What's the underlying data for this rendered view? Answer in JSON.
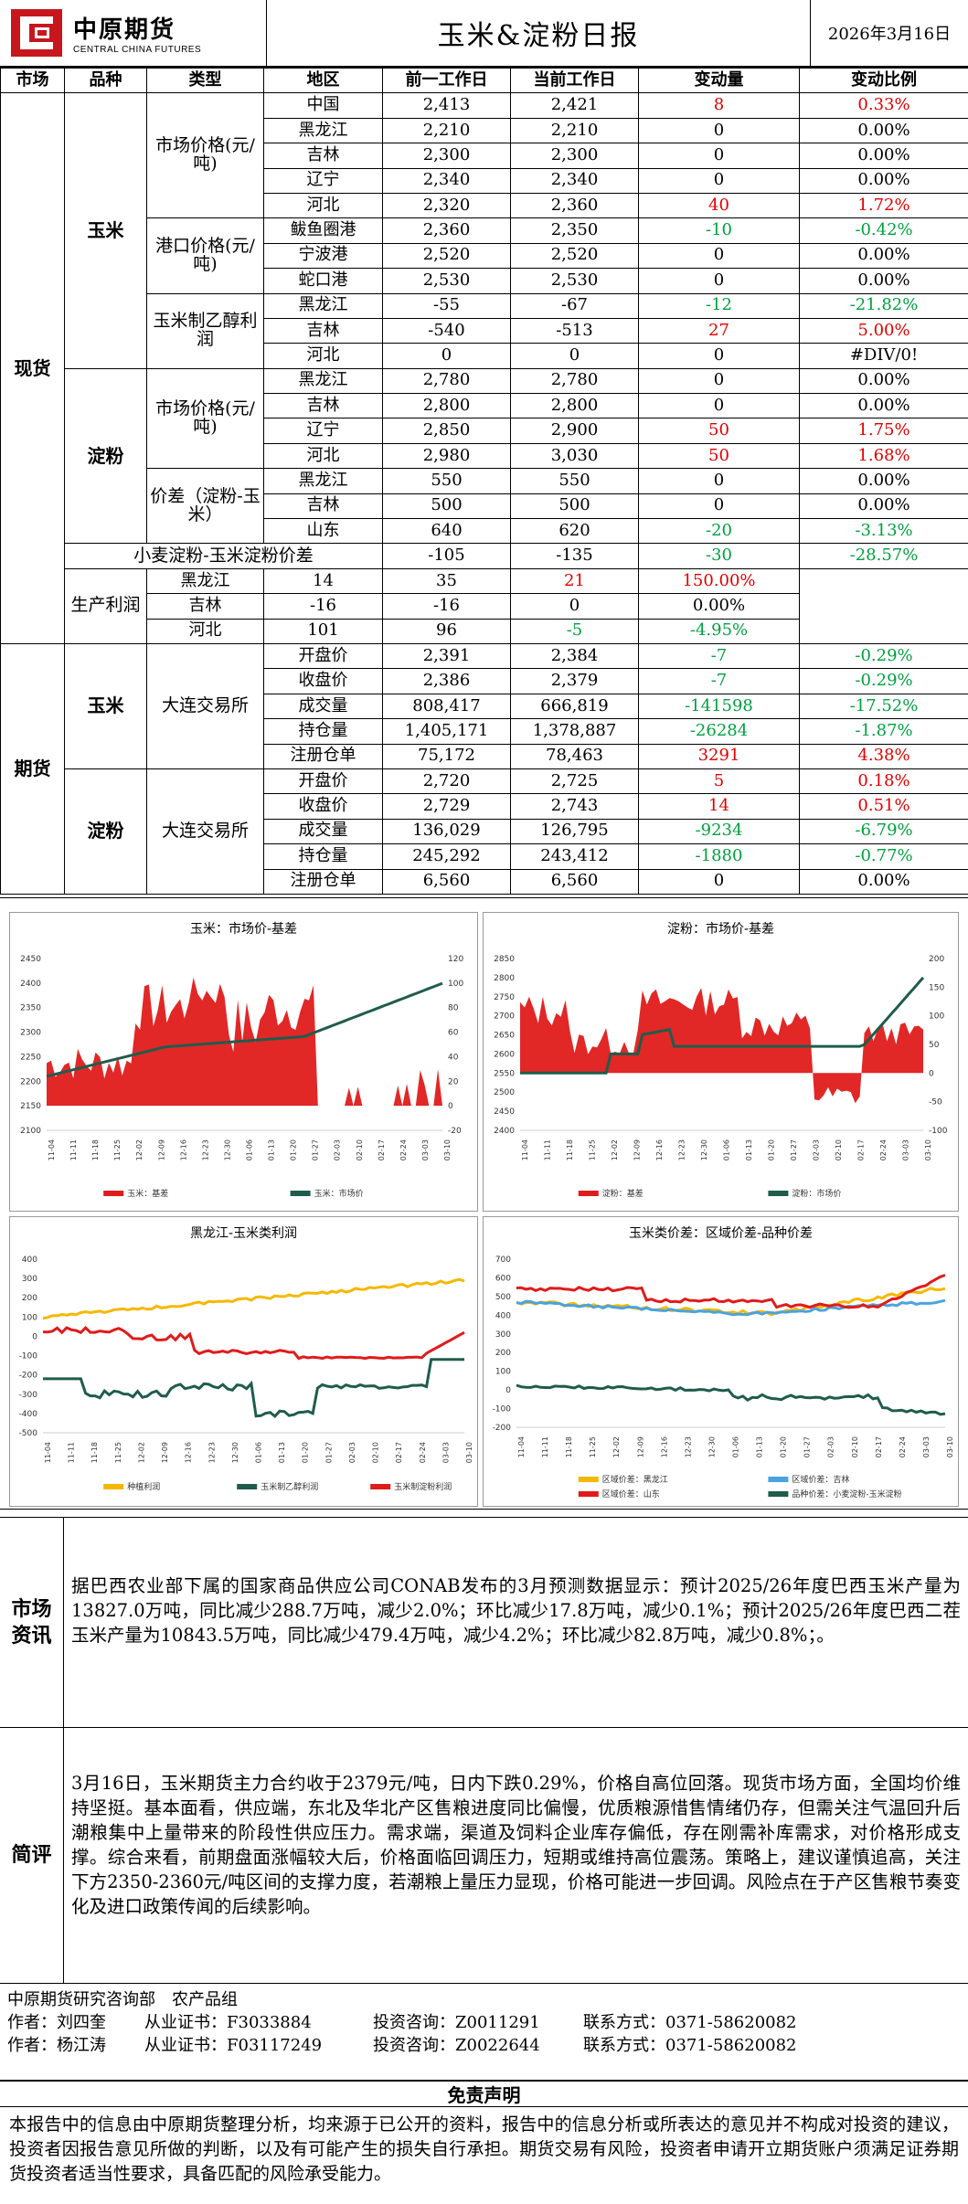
{
  "header": {
    "logo_cn": "中原期货",
    "logo_en": "CENTRAL CHINA FUTURES",
    "title": "玉米&淀粉日报",
    "date": "2026年3月16日"
  },
  "table": {
    "headers": [
      "市场",
      "品种",
      "类型",
      "地区",
      "前一工作日",
      "当前工作日",
      "变动量",
      "变动比例"
    ],
    "market_spot": "现货",
    "market_futures": "期货",
    "corn": "玉米",
    "starch": "淀粉",
    "corn_market_price": "市场价格(元/吨)",
    "corn_port_price": "港口价格(元/吨)",
    "ethanol_profit": "玉米制乙醇利润",
    "starch_market_price": "市场价格(元/吨)",
    "starch_spread": "价差（淀粉-玉米）",
    "wheat_spread": "小麦淀粉-玉米淀粉价差",
    "production_profit": "生产利润",
    "exchange": "大连交易所",
    "rows": [
      {
        "region": "中国",
        "prev": "2,413",
        "curr": "2,421",
        "chg": "8",
        "pct": "0.33%",
        "chg_c": "red",
        "pct_c": "red"
      },
      {
        "region": "黑龙江",
        "prev": "2,210",
        "curr": "2,210",
        "chg": "0",
        "pct": "0.00%",
        "chg_c": "",
        "pct_c": ""
      },
      {
        "region": "吉林",
        "prev": "2,300",
        "curr": "2,300",
        "chg": "0",
        "pct": "0.00%",
        "chg_c": "",
        "pct_c": ""
      },
      {
        "region": "辽宁",
        "prev": "2,340",
        "curr": "2,340",
        "chg": "0",
        "pct": "0.00%",
        "chg_c": "",
        "pct_c": ""
      },
      {
        "region": "河北",
        "prev": "2,320",
        "curr": "2,360",
        "chg": "40",
        "pct": "1.72%",
        "chg_c": "red",
        "pct_c": "red"
      },
      {
        "region": "鲅鱼圈港",
        "prev": "2,360",
        "curr": "2,350",
        "chg": "-10",
        "pct": "-0.42%",
        "chg_c": "green",
        "pct_c": "green"
      },
      {
        "region": "宁波港",
        "prev": "2,520",
        "curr": "2,520",
        "chg": "0",
        "pct": "0.00%",
        "chg_c": "",
        "pct_c": ""
      },
      {
        "region": "蛇口港",
        "prev": "2,530",
        "curr": "2,530",
        "chg": "0",
        "pct": "0.00%",
        "chg_c": "",
        "pct_c": ""
      },
      {
        "region": "黑龙江",
        "prev": "-55",
        "curr": "-67",
        "chg": "-12",
        "pct": "-21.82%",
        "chg_c": "green",
        "pct_c": "green"
      },
      {
        "region": "吉林",
        "prev": "-540",
        "curr": "-513",
        "chg": "27",
        "pct": "5.00%",
        "chg_c": "red",
        "pct_c": "red"
      },
      {
        "region": "河北",
        "prev": "0",
        "curr": "0",
        "chg": "0",
        "pct": "#DIV/0!",
        "chg_c": "",
        "pct_c": ""
      },
      {
        "region": "黑龙江",
        "prev": "2,780",
        "curr": "2,780",
        "chg": "0",
        "pct": "0.00%",
        "chg_c": "",
        "pct_c": ""
      },
      {
        "region": "吉林",
        "prev": "2,800",
        "curr": "2,800",
        "chg": "0",
        "pct": "0.00%",
        "chg_c": "",
        "pct_c": ""
      },
      {
        "region": "辽宁",
        "prev": "2,850",
        "curr": "2,900",
        "chg": "50",
        "pct": "1.75%",
        "chg_c": "red",
        "pct_c": "red"
      },
      {
        "region": "河北",
        "prev": "2,980",
        "curr": "3,030",
        "chg": "50",
        "pct": "1.68%",
        "chg_c": "red",
        "pct_c": "red"
      },
      {
        "region": "黑龙江",
        "prev": "550",
        "curr": "550",
        "chg": "0",
        "pct": "0.00%",
        "chg_c": "",
        "pct_c": ""
      },
      {
        "region": "吉林",
        "prev": "500",
        "curr": "500",
        "chg": "0",
        "pct": "0.00%",
        "chg_c": "",
        "pct_c": ""
      },
      {
        "region": "山东",
        "prev": "640",
        "curr": "620",
        "chg": "-20",
        "pct": "-3.13%",
        "chg_c": "green",
        "pct_c": "green"
      },
      {
        "region": "",
        "prev": "-105",
        "curr": "-135",
        "chg": "-30",
        "pct": "-28.57%",
        "chg_c": "green",
        "pct_c": "green"
      },
      {
        "region": "黑龙江",
        "prev": "14",
        "curr": "35",
        "chg": "21",
        "pct": "150.00%",
        "chg_c": "red",
        "pct_c": "red"
      },
      {
        "region": "吉林",
        "prev": "-16",
        "curr": "-16",
        "chg": "0",
        "pct": "0.00%",
        "chg_c": "",
        "pct_c": ""
      },
      {
        "region": "河北",
        "prev": "101",
        "curr": "96",
        "chg": "-5",
        "pct": "-4.95%",
        "chg_c": "green",
        "pct_c": "green"
      },
      {
        "region": "开盘价",
        "prev": "2,391",
        "curr": "2,384",
        "chg": "-7",
        "pct": "-0.29%",
        "chg_c": "green",
        "pct_c": "green"
      },
      {
        "region": "收盘价",
        "prev": "2,386",
        "curr": "2,379",
        "chg": "-7",
        "pct": "-0.29%",
        "chg_c": "green",
        "pct_c": "green"
      },
      {
        "region": "成交量",
        "prev": "808,417",
        "curr": "666,819",
        "chg": "-141598",
        "pct": "-17.52%",
        "chg_c": "green",
        "pct_c": "green"
      },
      {
        "region": "持仓量",
        "prev": "1,405,171",
        "curr": "1,378,887",
        "chg": "-26284",
        "pct": "-1.87%",
        "chg_c": "green",
        "pct_c": "green"
      },
      {
        "region": "注册仓单",
        "prev": "75,172",
        "curr": "78,463",
        "chg": "3291",
        "pct": "4.38%",
        "chg_c": "red",
        "pct_c": "red"
      },
      {
        "region": "开盘价",
        "prev": "2,720",
        "curr": "2,725",
        "chg": "5",
        "pct": "0.18%",
        "chg_c": "red",
        "pct_c": "red"
      },
      {
        "region": "收盘价",
        "prev": "2,729",
        "curr": "2,743",
        "chg": "14",
        "pct": "0.51%",
        "chg_c": "red",
        "pct_c": "red"
      },
      {
        "region": "成交量",
        "prev": "136,029",
        "curr": "126,795",
        "chg": "-9234",
        "pct": "-6.79%",
        "chg_c": "green",
        "pct_c": "green"
      },
      {
        "region": "持仓量",
        "prev": "245,292",
        "curr": "243,412",
        "chg": "-1880",
        "pct": "-0.77%",
        "chg_c": "green",
        "pct_c": "green"
      },
      {
        "region": "注册仓单",
        "prev": "6,560",
        "curr": "6,560",
        "chg": "0",
        "pct": "0.00%",
        "chg_c": "",
        "pct_c": ""
      }
    ]
  },
  "charts": {
    "xticks": [
      "11-04",
      "11-11",
      "11-18",
      "11-25",
      "12-02",
      "12-09",
      "12-16",
      "12-23",
      "12-30",
      "01-06",
      "01-13",
      "01-20",
      "01-27",
      "02-03",
      "02-10",
      "02-17",
      "02-24",
      "03-03",
      "03-10"
    ],
    "c1": {
      "title": "玉米：市场价-基差",
      "yleft": [
        "2450",
        "2400",
        "2350",
        "2300",
        "2250",
        "2200",
        "2150",
        "2100"
      ],
      "yright": [
        "120",
        "100",
        "80",
        "60",
        "40",
        "20",
        "0",
        "-20"
      ],
      "legend": [
        "玉米：基差",
        "玉米：市场价"
      ]
    },
    "c2": {
      "title": "淀粉：市场价-基差",
      "yleft": [
        "2850",
        "2800",
        "2750",
        "2700",
        "2650",
        "2600",
        "2550",
        "2500",
        "2450",
        "2400"
      ],
      "yright": [
        "200",
        "150",
        "100",
        "50",
        "0",
        "-50",
        "-100"
      ],
      "legend": [
        "淀粉：基差",
        "淀粉：市场价"
      ]
    },
    "c3": {
      "title": "黑龙江-玉米类利润",
      "y": [
        "400",
        "300",
        "200",
        "100",
        "0",
        "-100",
        "-200",
        "-300",
        "-400",
        "-500"
      ],
      "legend": [
        "种植利润",
        "玉米制乙醇利润",
        "玉米制淀粉利润"
      ]
    },
    "c4": {
      "title": "玉米类价差：区域价差-品种价差",
      "y": [
        "700",
        "600",
        "500",
        "400",
        "300",
        "200",
        "100",
        "0",
        "-100",
        "-200"
      ],
      "legend": [
        "区域价差：黑龙江",
        "区域价差：吉林",
        "区域价差：山东",
        "品种价差：小麦淀粉-玉米淀粉"
      ]
    }
  },
  "colors": {
    "red": "#e00000",
    "green": "#00a040",
    "teal": "#1f5c4c",
    "yellow": "#f5b800",
    "blue": "#4aa3df",
    "chart_red": "#e01b1b"
  },
  "info": {
    "label": "市场资讯",
    "text": "据巴西农业部下属的国家商品供应公司CONAB发布的3月预测数据显示：预计2025/26年度巴西玉米产量为13827.0万吨，同比减少288.7万吨，减少2.0%；环比减少17.8万吨，减少0.1%；预计2025/26年度巴西二茬玉米产量为10843.5万吨，同比减少479.4万吨，减少4.2%；环比减少82.8万吨，减少0.8%；。"
  },
  "review": {
    "label": "简评",
    "text": "3月16日，玉米期货主力合约收于2379元/吨，日内下跌0.29%，价格自高位回落。现货市场方面，全国均价维持坚挺。基本面看，供应端，东北及华北产区售粮进度同比偏慢，优质粮源惜售情绪仍存，但需关注气温回升后潮粮集中上量带来的阶段性供应压力。需求端，渠道及饲料企业库存偏低，存在刚需补库需求，对价格形成支撑。综合来看，前期盘面涨幅较大后，价格面临回调压力，短期或维持高位震荡。策略上，建议谨慎追高，关注下方2350-2360元/吨区间的支撑力度，若潮粮上量压力显现，价格可能进一步回调。风险点在于产区售粮节奏变化及进口政策传闻的后续影响。"
  },
  "footer": {
    "dept": "中原期货研究咨询部　农产品组",
    "a1_name": "作者：刘四奎",
    "a1_cert": "从业证书：F3033884",
    "a1_inv": "投资咨询：Z0011291",
    "a1_tel": "联系方式：0371-58620082",
    "a2_name": "作者：杨江涛",
    "a2_cert": "从业证书：F03117249",
    "a2_inv": "投资咨询：Z0022644",
    "a2_tel": "联系方式：0371-58620082"
  },
  "disclaimer": {
    "title": "免责声明",
    "text": "本报告中的信息由中原期货整理分析，均来源于已公开的资料，报告中的信息分析或所表达的意见并不构成对投资的建议，投资者因报告意见所做的判断，以及有可能产生的损失自行承担。期货交易有风险，投资者申请开立期货账户须满足证券期货投资者适当性要求，具备匹配的风险承受能力。"
  }
}
